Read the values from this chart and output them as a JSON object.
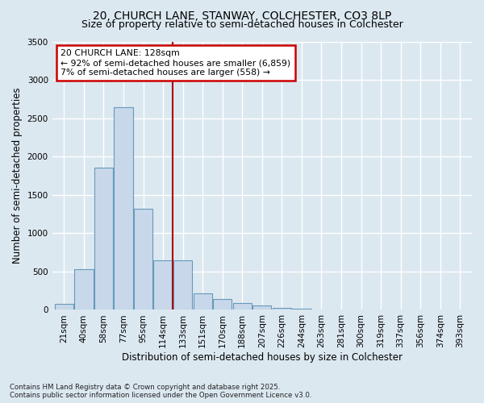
{
  "title_line1": "20, CHURCH LANE, STANWAY, COLCHESTER, CO3 8LP",
  "title_line2": "Size of property relative to semi-detached houses in Colchester",
  "xlabel": "Distribution of semi-detached houses by size in Colchester",
  "ylabel": "Number of semi-detached properties",
  "footnote_line1": "Contains HM Land Registry data © Crown copyright and database right 2025.",
  "footnote_line2": "Contains public sector information licensed under the Open Government Licence v3.0.",
  "categories": [
    "21sqm",
    "40sqm",
    "58sqm",
    "77sqm",
    "95sqm",
    "114sqm",
    "133sqm",
    "151sqm",
    "170sqm",
    "188sqm",
    "207sqm",
    "226sqm",
    "244sqm",
    "263sqm",
    "281sqm",
    "300sqm",
    "319sqm",
    "337sqm",
    "356sqm",
    "374sqm",
    "393sqm"
  ],
  "values": [
    75,
    530,
    1850,
    2640,
    1320,
    650,
    650,
    210,
    140,
    90,
    55,
    30,
    15,
    8,
    3,
    2,
    1,
    1,
    0,
    0,
    0
  ],
  "bar_color": "#c8d8ea",
  "bar_edge_color": "#6699bb",
  "red_line_label": "20 CHURCH LANE: 128sqm",
  "annotation_line2": "← 92% of semi-detached houses are smaller (6,859)",
  "annotation_line3": "7% of semi-detached houses are larger (558) →",
  "red_line_index": 6,
  "ylim": [
    0,
    3500
  ],
  "yticks": [
    0,
    500,
    1000,
    1500,
    2000,
    2500,
    3000,
    3500
  ],
  "background_color": "#dce8f0",
  "plot_bg_color": "#dce8f0",
  "grid_color": "#ffffff",
  "title_fontsize": 10,
  "subtitle_fontsize": 9,
  "axis_label_fontsize": 8.5,
  "tick_fontsize": 7.5
}
